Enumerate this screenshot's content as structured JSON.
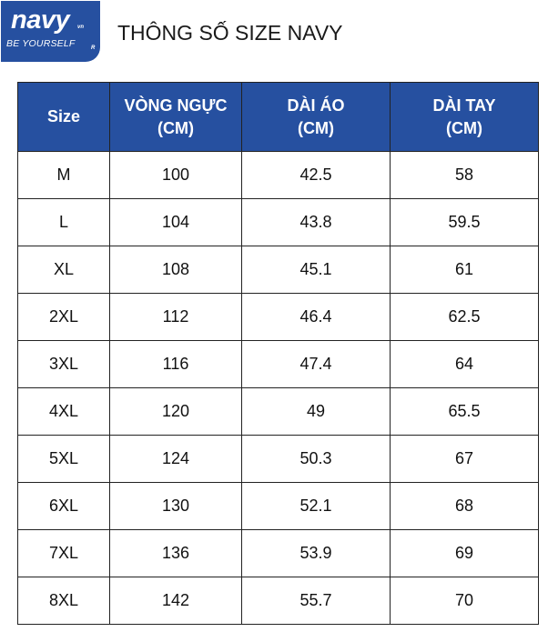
{
  "logo": {
    "word": "navy",
    "suffix": "vn",
    "tagline": "BE YOURSELF",
    "mark": "R"
  },
  "title": "THÔNG SỐ SIZE NAVY",
  "table": {
    "headers": [
      "Size",
      "VÒNG NGỰC (CM)",
      "DÀI ÁO (CM)",
      "DÀI TAY (CM)"
    ],
    "header_lines": [
      [
        "Size"
      ],
      [
        "VÒNG NGỰC",
        "(CM)"
      ],
      [
        "DÀI ÁO",
        "(CM)"
      ],
      [
        "DÀI TAY",
        "(CM)"
      ]
    ],
    "rows": [
      [
        "M",
        "100",
        "42.5",
        "58"
      ],
      [
        "L",
        "104",
        "43.8",
        "59.5"
      ],
      [
        "XL",
        "108",
        "45.1",
        "61"
      ],
      [
        "2XL",
        "112",
        "46.4",
        "62.5"
      ],
      [
        "3XL",
        "116",
        "47.4",
        "64"
      ],
      [
        "4XL",
        "120",
        "49",
        "65.5"
      ],
      [
        "5XL",
        "124",
        "50.3",
        "67"
      ],
      [
        "6XL",
        "130",
        "52.1",
        "68"
      ],
      [
        "7XL",
        "136",
        "53.9",
        "69"
      ],
      [
        "8XL",
        "142",
        "55.7",
        "70"
      ]
    ]
  },
  "colors": {
    "brand_blue": "#2650a0",
    "header_text": "#ffffff",
    "border": "#222222"
  }
}
